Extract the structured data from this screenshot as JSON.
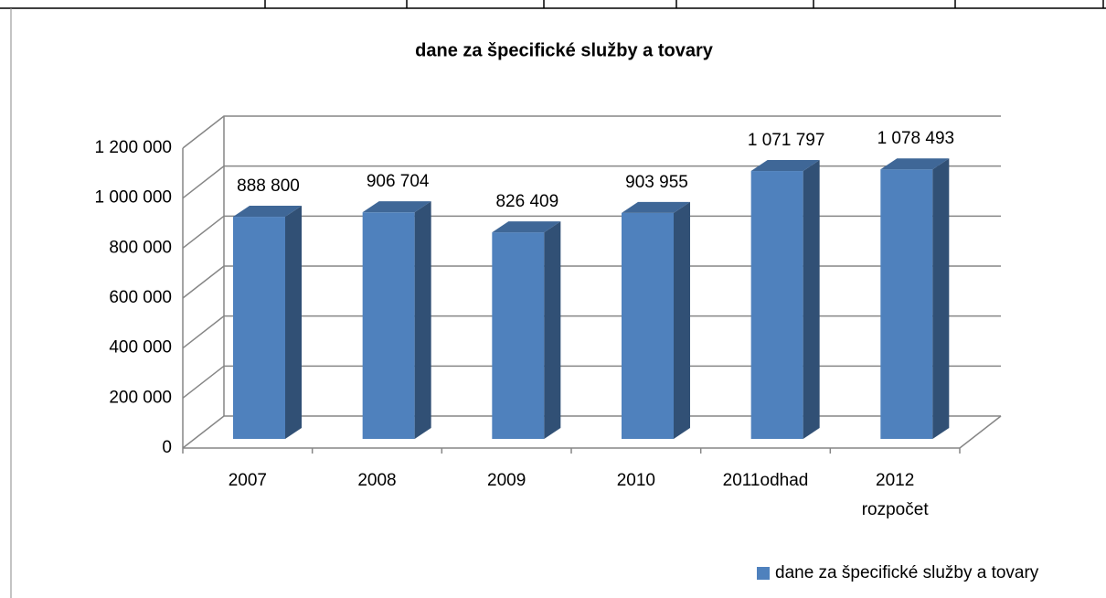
{
  "chart_data": {
    "type": "bar3d",
    "title": "dane za špecifické služby a tovary",
    "categories": [
      "2007",
      "2008",
      "2009",
      "2010",
      "2011odhad",
      "2012 rozpočet"
    ],
    "series": [
      {
        "name": "dane za špecifické služby a tovary",
        "color": "#4f81bd",
        "values": [
          888800,
          906704,
          826409,
          903955,
          1071797,
          1078493
        ],
        "value_labels": [
          "888 800",
          "906 704",
          "826 409",
          "903 955",
          "1 071 797",
          "1 078 493"
        ]
      }
    ],
    "ylim": [
      0,
      1200000
    ],
    "yticks": [
      0,
      {
        "value": 200000,
        "label": "200 000"
      },
      {
        "value": 400000,
        "label": "400 000"
      },
      {
        "value": 600000,
        "label": "600 000"
      },
      {
        "value": 800000,
        "label": "800 000"
      },
      {
        "value": 1000000,
        "label": "1 000 000"
      },
      {
        "value": 1200000,
        "label": "1 200 000"
      }
    ],
    "grid": true,
    "legend": "bottom-right"
  }
}
